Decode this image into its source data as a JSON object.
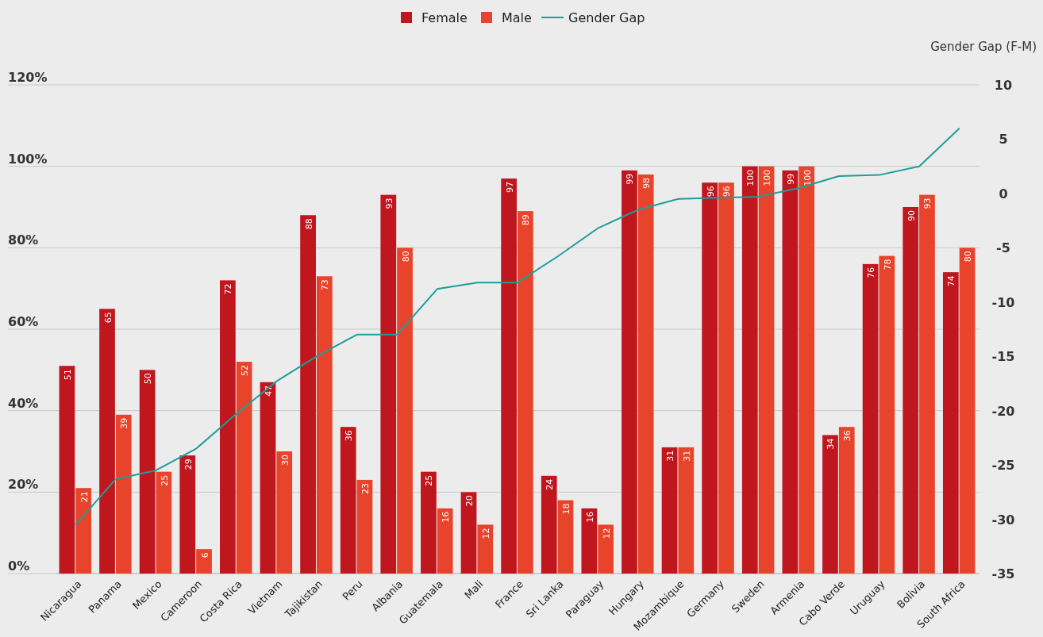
{
  "chart_data": {
    "type": "bar",
    "y2label": "Gender Gap (F-M)",
    "categories": [
      "Nicaragua",
      "Panama",
      "Mexico",
      "Cameroon",
      "Costa Rica",
      "Vietnam",
      "Tajikistan",
      "Peru",
      "Albania",
      "Guatemala",
      "Mali",
      "France",
      "Sri Lanka",
      "Paraguay",
      "Hungary",
      "Mozambique",
      "Germany",
      "Sweden",
      "Armenia",
      "Cabo Verde",
      "Uruguay",
      "Bolivia",
      "South Africa"
    ],
    "series": [
      {
        "name": "Female",
        "color": "#c0171f",
        "values": [
          51,
          65,
          50,
          29,
          72,
          47,
          88,
          36,
          93,
          25,
          20,
          97,
          24,
          16,
          99,
          31,
          96,
          100,
          99,
          34,
          76,
          90,
          74
        ],
        "value_labels": [
          "51",
          "65",
          "50",
          "29",
          "72",
          "47",
          "88",
          "36",
          "93",
          "25",
          "20",
          "97",
          "24",
          "16",
          "99",
          "31",
          "96",
          "100",
          "99",
          "34",
          "76",
          "90",
          "74"
        ]
      },
      {
        "name": "Male",
        "color": "#e8442c",
        "values": [
          21,
          39,
          25,
          6,
          52,
          30,
          73,
          23,
          80,
          16,
          12,
          89,
          18,
          12,
          98,
          31,
          96,
          100,
          100,
          36,
          78,
          93,
          80
        ],
        "value_labels": [
          "21",
          "39",
          "25",
          "6",
          "52",
          "30",
          "73",
          "23",
          "80",
          "16",
          "12",
          "89",
          "18",
          "12",
          "98",
          "31",
          "96",
          "100",
          "100",
          "36",
          "78",
          "93",
          "80"
        ]
      },
      {
        "name": "Gender Gap",
        "type": "line",
        "axis": "y2",
        "color": "#1a9f9a",
        "values": [
          -30.5,
          -26.3,
          -25.5,
          -23.5,
          -20.3,
          -17.3,
          -15,
          -13,
          -13,
          -8.8,
          -8.2,
          -8.2,
          -5.8,
          -3.2,
          -1.5,
          -0.5,
          -0.4,
          -0.3,
          0.5,
          1.6,
          1.7,
          2.5,
          6
        ]
      }
    ],
    "ylim": [
      0,
      120
    ],
    "yticks": [
      {
        "value": 0,
        "label": "0%"
      },
      {
        "value": 20,
        "label": "20%"
      },
      {
        "value": 40,
        "label": "40%"
      },
      {
        "value": 60,
        "label": "60%"
      },
      {
        "value": 80,
        "label": "80%"
      },
      {
        "value": 100,
        "label": "100%"
      },
      {
        "value": 120,
        "label": "120%"
      }
    ],
    "y2lim": [
      -35,
      10
    ],
    "y2ticks": [
      -35,
      -30,
      -25,
      -20,
      -15,
      -10,
      -5,
      0,
      5,
      10
    ],
    "grid": "y",
    "legend": "top",
    "marker": "none"
  }
}
